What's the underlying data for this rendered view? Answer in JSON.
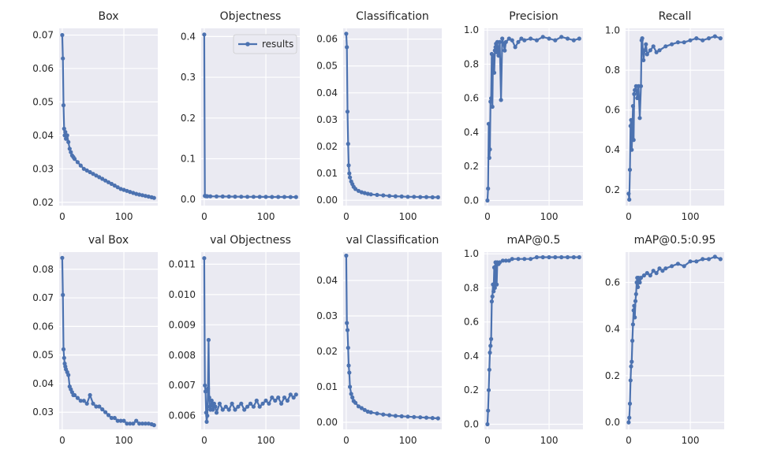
{
  "chart_data": [
    {
      "type": "line",
      "title": "Box",
      "xlim": [
        -5,
        155
      ],
      "ylim": [
        0.019,
        0.072
      ],
      "xticks": [
        0,
        100
      ],
      "yticks": [
        0.02,
        0.03,
        0.04,
        0.05,
        0.06,
        0.07
      ],
      "ytick_decimals": 2,
      "grid": true,
      "series": [
        {
          "name": "results",
          "x": [
            0,
            1,
            2,
            3,
            4,
            5,
            6,
            8,
            10,
            12,
            14,
            16,
            18,
            20,
            25,
            30,
            35,
            40,
            45,
            50,
            55,
            60,
            65,
            70,
            75,
            80,
            85,
            90,
            95,
            100,
            105,
            110,
            115,
            120,
            125,
            130,
            135,
            140,
            145,
            149
          ],
          "y": [
            0.07,
            0.063,
            0.049,
            0.042,
            0.04,
            0.041,
            0.039,
            0.04,
            0.038,
            0.036,
            0.035,
            0.034,
            0.0335,
            0.033,
            0.032,
            0.031,
            0.03,
            0.0295,
            0.029,
            0.0285,
            0.028,
            0.0275,
            0.027,
            0.0265,
            0.026,
            0.0255,
            0.025,
            0.0245,
            0.024,
            0.0237,
            0.0234,
            0.0231,
            0.0228,
            0.0225,
            0.0223,
            0.0221,
            0.0219,
            0.0217,
            0.0215,
            0.0213
          ]
        }
      ]
    },
    {
      "type": "line",
      "title": "Objectness",
      "xlim": [
        -5,
        155
      ],
      "ylim": [
        -0.015,
        0.42
      ],
      "xticks": [
        0,
        100
      ],
      "yticks": [
        0.0,
        0.1,
        0.2,
        0.3,
        0.4
      ],
      "ytick_decimals": 1,
      "grid": true,
      "legend": "upper-right",
      "series": [
        {
          "name": "results",
          "x": [
            0,
            1,
            2,
            3,
            5,
            10,
            20,
            30,
            40,
            50,
            60,
            70,
            80,
            90,
            100,
            110,
            120,
            130,
            140,
            149
          ],
          "y": [
            0.405,
            0.009,
            0.0085,
            0.0082,
            0.008,
            0.0078,
            0.0076,
            0.0074,
            0.0072,
            0.007,
            0.0068,
            0.0067,
            0.0066,
            0.0065,
            0.0064,
            0.0063,
            0.0062,
            0.0062,
            0.0061,
            0.0061
          ]
        }
      ]
    },
    {
      "type": "line",
      "title": "Classification",
      "xlim": [
        -5,
        155
      ],
      "ylim": [
        -0.002,
        0.064
      ],
      "xticks": [
        0,
        100
      ],
      "yticks": [
        0.0,
        0.01,
        0.02,
        0.03,
        0.04,
        0.05,
        0.06
      ],
      "ytick_decimals": 2,
      "grid": true,
      "series": [
        {
          "name": "results",
          "x": [
            0,
            1,
            2,
            3,
            4,
            5,
            6,
            8,
            10,
            12,
            15,
            20,
            25,
            30,
            35,
            40,
            50,
            60,
            70,
            80,
            90,
            100,
            110,
            120,
            130,
            140,
            149
          ],
          "y": [
            0.062,
            0.057,
            0.033,
            0.021,
            0.013,
            0.01,
            0.0085,
            0.007,
            0.006,
            0.005,
            0.0042,
            0.0035,
            0.003,
            0.0027,
            0.0024,
            0.0022,
            0.002,
            0.0018,
            0.0016,
            0.0015,
            0.0014,
            0.0013,
            0.0013,
            0.0012,
            0.0012,
            0.0011,
            0.0011
          ]
        }
      ]
    },
    {
      "type": "line",
      "title": "Precision",
      "xlim": [
        -5,
        155
      ],
      "ylim": [
        -0.03,
        1.01
      ],
      "xticks": [
        0,
        100
      ],
      "yticks": [
        0.0,
        0.2,
        0.4,
        0.6,
        0.8,
        1.0
      ],
      "ytick_decimals": 1,
      "grid": true,
      "series": [
        {
          "name": "results",
          "x": [
            0,
            1,
            2,
            3,
            4,
            5,
            6,
            7,
            8,
            9,
            10,
            11,
            12,
            13,
            14,
            15,
            16,
            18,
            20,
            22,
            24,
            26,
            28,
            30,
            35,
            40,
            45,
            50,
            55,
            60,
            70,
            80,
            90,
            100,
            110,
            120,
            130,
            140,
            149
          ],
          "y": [
            0.0,
            0.07,
            0.45,
            0.25,
            0.3,
            0.58,
            0.6,
            0.86,
            0.55,
            0.83,
            0.85,
            0.75,
            0.88,
            0.9,
            0.92,
            0.87,
            0.93,
            0.85,
            0.93,
            0.59,
            0.95,
            0.92,
            0.88,
            0.93,
            0.95,
            0.94,
            0.9,
            0.93,
            0.95,
            0.94,
            0.95,
            0.94,
            0.96,
            0.95,
            0.94,
            0.96,
            0.95,
            0.94,
            0.95
          ]
        }
      ]
    },
    {
      "type": "line",
      "title": "Recall",
      "xlim": [
        -5,
        155
      ],
      "ylim": [
        0.12,
        1.01
      ],
      "xticks": [
        0,
        100
      ],
      "yticks": [
        0.2,
        0.4,
        0.6,
        0.8,
        1.0
      ],
      "ytick_decimals": 1,
      "grid": true,
      "series": [
        {
          "name": "results",
          "x": [
            0,
            1,
            2,
            3,
            4,
            5,
            6,
            7,
            8,
            9,
            10,
            12,
            14,
            16,
            18,
            20,
            21,
            22,
            24,
            26,
            28,
            30,
            35,
            40,
            45,
            50,
            60,
            70,
            80,
            90,
            100,
            110,
            120,
            130,
            140,
            149
          ],
          "y": [
            0.18,
            0.15,
            0.3,
            0.52,
            0.55,
            0.4,
            0.5,
            0.62,
            0.45,
            0.68,
            0.7,
            0.72,
            0.66,
            0.72,
            0.56,
            0.72,
            0.95,
            0.96,
            0.85,
            0.9,
            0.93,
            0.88,
            0.9,
            0.92,
            0.89,
            0.9,
            0.92,
            0.93,
            0.94,
            0.94,
            0.95,
            0.96,
            0.95,
            0.96,
            0.97,
            0.96
          ]
        }
      ]
    },
    {
      "type": "line",
      "title": "val Box",
      "xlim": [
        -5,
        155
      ],
      "ylim": [
        0.024,
        0.086
      ],
      "xticks": [
        0,
        100
      ],
      "yticks": [
        0.03,
        0.04,
        0.05,
        0.06,
        0.07,
        0.08
      ],
      "ytick_decimals": 2,
      "grid": true,
      "series": [
        {
          "name": "results",
          "x": [
            0,
            1,
            2,
            3,
            4,
            5,
            6,
            8,
            10,
            12,
            14,
            16,
            18,
            20,
            25,
            30,
            35,
            40,
            45,
            50,
            55,
            60,
            65,
            70,
            75,
            80,
            85,
            90,
            95,
            100,
            105,
            110,
            115,
            120,
            125,
            130,
            135,
            140,
            145,
            149
          ],
          "y": [
            0.084,
            0.071,
            0.052,
            0.049,
            0.047,
            0.046,
            0.045,
            0.044,
            0.043,
            0.039,
            0.038,
            0.037,
            0.036,
            0.036,
            0.035,
            0.034,
            0.034,
            0.033,
            0.036,
            0.033,
            0.032,
            0.032,
            0.031,
            0.03,
            0.029,
            0.028,
            0.028,
            0.027,
            0.027,
            0.027,
            0.026,
            0.026,
            0.026,
            0.027,
            0.026,
            0.026,
            0.026,
            0.026,
            0.0258,
            0.0255
          ]
        }
      ]
    },
    {
      "type": "line",
      "title": "val Objectness",
      "xlim": [
        -5,
        155
      ],
      "ylim": [
        0.00555,
        0.0114
      ],
      "xticks": [
        0,
        100
      ],
      "yticks": [
        0.006,
        0.007,
        0.008,
        0.009,
        0.01,
        0.011
      ],
      "ytick_decimals": 3,
      "grid": true,
      "series": [
        {
          "name": "results",
          "x": [
            0,
            1,
            2,
            3,
            4,
            5,
            6,
            7,
            8,
            9,
            10,
            12,
            14,
            16,
            18,
            20,
            25,
            30,
            35,
            40,
            45,
            50,
            55,
            60,
            65,
            70,
            75,
            80,
            85,
            90,
            95,
            100,
            105,
            110,
            115,
            120,
            125,
            130,
            135,
            140,
            145,
            149
          ],
          "y": [
            0.0112,
            0.007,
            0.0068,
            0.0061,
            0.0058,
            0.006,
            0.0069,
            0.0085,
            0.0066,
            0.0063,
            0.0062,
            0.0065,
            0.0062,
            0.0064,
            0.0063,
            0.0061,
            0.0064,
            0.0062,
            0.0063,
            0.0062,
            0.0064,
            0.0062,
            0.0063,
            0.0064,
            0.0062,
            0.0063,
            0.0064,
            0.0063,
            0.0065,
            0.0063,
            0.0064,
            0.0065,
            0.0064,
            0.0066,
            0.0065,
            0.0066,
            0.0064,
            0.0066,
            0.0065,
            0.0067,
            0.0066,
            0.0067
          ]
        }
      ]
    },
    {
      "type": "line",
      "title": "val Classification",
      "xlim": [
        -5,
        155
      ],
      "ylim": [
        -0.002,
        0.048
      ],
      "xticks": [
        0,
        100
      ],
      "yticks": [
        0.0,
        0.01,
        0.02,
        0.03,
        0.04
      ],
      "ytick_decimals": 2,
      "grid": true,
      "series": [
        {
          "name": "results",
          "x": [
            0,
            1,
            2,
            3,
            4,
            5,
            6,
            8,
            10,
            12,
            15,
            20,
            25,
            30,
            35,
            40,
            50,
            60,
            70,
            80,
            90,
            100,
            110,
            120,
            130,
            140,
            149
          ],
          "y": [
            0.047,
            0.028,
            0.026,
            0.021,
            0.016,
            0.014,
            0.01,
            0.008,
            0.007,
            0.006,
            0.0055,
            0.0045,
            0.004,
            0.0035,
            0.003,
            0.0028,
            0.0025,
            0.0022,
            0.002,
            0.0018,
            0.0017,
            0.0016,
            0.0015,
            0.0014,
            0.0013,
            0.0012,
            0.0011
          ]
        }
      ]
    },
    {
      "type": "line",
      "title": "mAP@0.5",
      "xlim": [
        -5,
        155
      ],
      "ylim": [
        -0.03,
        1.01
      ],
      "xticks": [
        0,
        100
      ],
      "yticks": [
        0.0,
        0.2,
        0.4,
        0.6,
        0.8,
        1.0
      ],
      "ytick_decimals": 1,
      "grid": true,
      "series": [
        {
          "name": "results",
          "x": [
            0,
            1,
            2,
            3,
            4,
            5,
            6,
            7,
            8,
            9,
            10,
            11,
            12,
            13,
            14,
            15,
            16,
            18,
            20,
            25,
            30,
            35,
            40,
            50,
            60,
            70,
            80,
            90,
            100,
            110,
            120,
            130,
            140,
            149
          ],
          "y": [
            0.0,
            0.08,
            0.2,
            0.32,
            0.42,
            0.46,
            0.5,
            0.72,
            0.75,
            0.82,
            0.78,
            0.92,
            0.8,
            0.95,
            0.93,
            0.82,
            0.95,
            0.94,
            0.95,
            0.96,
            0.96,
            0.96,
            0.97,
            0.97,
            0.97,
            0.97,
            0.98,
            0.98,
            0.98,
            0.98,
            0.98,
            0.98,
            0.98,
            0.98
          ]
        }
      ]
    },
    {
      "type": "line",
      "title": "mAP@0.5:0.95",
      "xlim": [
        -5,
        155
      ],
      "ylim": [
        -0.03,
        0.73
      ],
      "xticks": [
        0,
        100
      ],
      "yticks": [
        0.0,
        0.2,
        0.4,
        0.6
      ],
      "ytick_decimals": 1,
      "grid": true,
      "series": [
        {
          "name": "results",
          "x": [
            0,
            1,
            2,
            3,
            4,
            5,
            6,
            7,
            8,
            9,
            10,
            11,
            12,
            13,
            14,
            15,
            16,
            18,
            20,
            25,
            30,
            35,
            40,
            45,
            50,
            55,
            60,
            70,
            80,
            90,
            100,
            110,
            120,
            130,
            140,
            149
          ],
          "y": [
            0.0,
            0.02,
            0.08,
            0.18,
            0.24,
            0.26,
            0.35,
            0.42,
            0.48,
            0.5,
            0.45,
            0.52,
            0.55,
            0.6,
            0.62,
            0.58,
            0.62,
            0.6,
            0.62,
            0.63,
            0.64,
            0.63,
            0.65,
            0.64,
            0.66,
            0.65,
            0.66,
            0.67,
            0.68,
            0.67,
            0.69,
            0.69,
            0.7,
            0.7,
            0.71,
            0.7
          ]
        }
      ]
    }
  ],
  "legend_label": "results",
  "colors": {
    "line": "#4C72B0",
    "axes_bg": "#EAEAF2",
    "grid": "#FFFFFF",
    "text": "#262626"
  }
}
